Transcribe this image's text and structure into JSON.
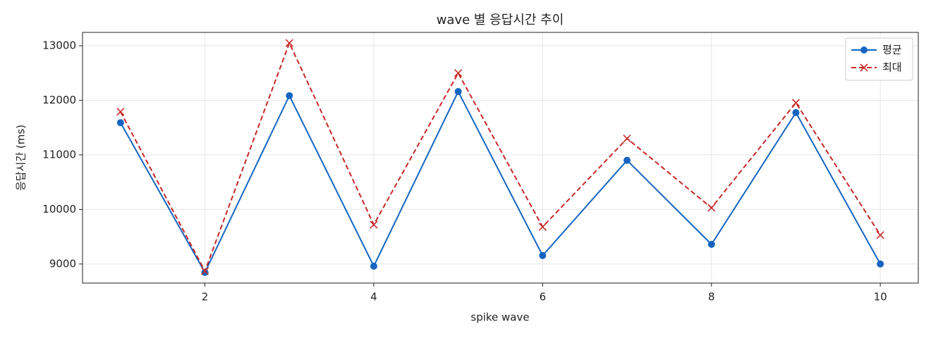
{
  "chart_data": {
    "type": "line",
    "title": "wave 별 응답시간 추이",
    "xlabel": "spike wave",
    "ylabel": "응답시간 (ms)",
    "x": [
      1,
      2,
      3,
      4,
      5,
      6,
      7,
      8,
      9,
      10
    ],
    "series": [
      {
        "name": "평균",
        "color": "#1565c0",
        "marker": "o",
        "linestyle": "solid",
        "values": [
          11590,
          8845,
          12085,
          8960,
          12160,
          9155,
          10900,
          9360,
          11775,
          9000
        ]
      },
      {
        "name": "최대",
        "color": "#c62828",
        "marker": "x",
        "linestyle": "dashed",
        "values": [
          11790,
          8870,
          13050,
          9720,
          12500,
          9680,
          11300,
          10030,
          11955,
          9530
        ]
      }
    ],
    "xlim": [
      0.55,
      10.45
    ],
    "xticks": [
      2,
      4,
      6,
      8,
      10
    ],
    "ylim": [
      8650,
      13245
    ],
    "yticks": [
      9000,
      10000,
      11000,
      12000,
      13000
    ],
    "grid": true,
    "legend": "upper right"
  }
}
